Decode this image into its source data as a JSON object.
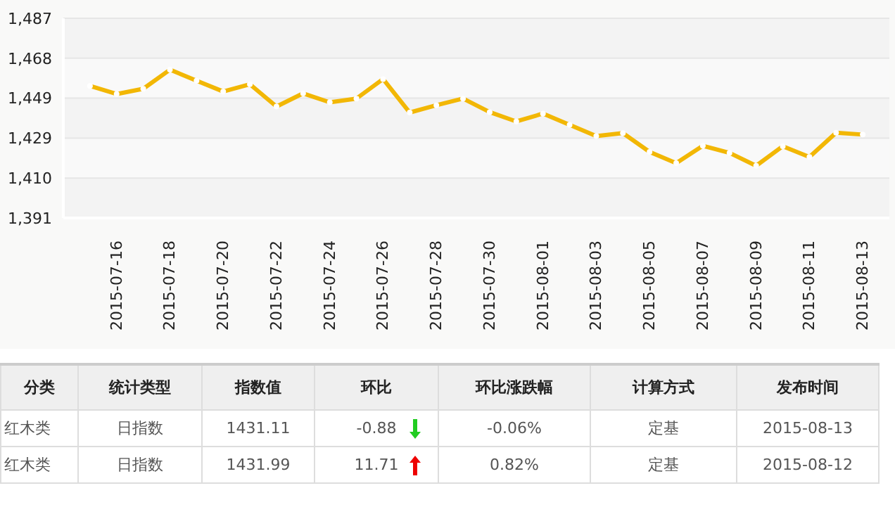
{
  "chart_data": {
    "type": "line",
    "x": [
      "2015-07-15",
      "2015-07-16",
      "2015-07-17",
      "2015-07-18",
      "2015-07-19",
      "2015-07-20",
      "2015-07-21",
      "2015-07-22",
      "2015-07-23",
      "2015-07-24",
      "2015-07-25",
      "2015-07-26",
      "2015-07-27",
      "2015-07-28",
      "2015-07-29",
      "2015-07-30",
      "2015-07-31",
      "2015-08-01",
      "2015-08-02",
      "2015-08-03",
      "2015-08-04",
      "2015-08-05",
      "2015-08-06",
      "2015-08-07",
      "2015-08-08",
      "2015-08-09",
      "2015-08-10",
      "2015-08-11",
      "2015-08-12",
      "2015-08-13"
    ],
    "series": [
      {
        "color": "#f2b705",
        "values": [
          1454.5,
          1450.6,
          1453.1,
          1462.3,
          1457.0,
          1451.8,
          1455.3,
          1444.6,
          1450.9,
          1446.6,
          1448.4,
          1457.8,
          1441.7,
          1445.2,
          1448.4,
          1441.9,
          1437.4,
          1441.2,
          1435.8,
          1430.4,
          1431.8,
          1422.8,
          1417.4,
          1425.7,
          1422.3,
          1416.1,
          1425.5,
          1420.3,
          1432.0,
          1431.1
        ]
      }
    ],
    "xlim": [
      "2015-07-14",
      "2015-08-14"
    ],
    "xticks": [
      "2015-07-16",
      "2015-07-18",
      "2015-07-20",
      "2015-07-22",
      "2015-07-24",
      "2015-07-26",
      "2015-07-28",
      "2015-07-30",
      "2015-08-01",
      "2015-08-03",
      "2015-08-05",
      "2015-08-07",
      "2015-08-09",
      "2015-08-11",
      "2015-08-13"
    ],
    "ylim": [
      1391,
      1487
    ],
    "yticks": [
      {
        "value": 1391,
        "label": "1,391"
      },
      {
        "value": 1410.2,
        "label": "1,410"
      },
      {
        "value": 1429.4,
        "label": "1,429"
      },
      {
        "value": 1448.6,
        "label": "1,449"
      },
      {
        "value": 1467.8,
        "label": "1,468"
      },
      {
        "value": 1487,
        "label": "1,487"
      }
    ],
    "grid": "y",
    "marker": "circle",
    "line_style": "solid",
    "annotations": [
      "分类",
      "统计类型",
      "指数值",
      "环比",
      "环比涨跌幅",
      "计算方式",
      "发布时间",
      "红木类",
      "日指数",
      "1431.11",
      "-0.88",
      "-0.06%",
      "定基",
      "2015-08-13",
      "红木类",
      "日指数",
      "1431.99",
      "11.71",
      "0.82%",
      "定基",
      "2015-08-12"
    ]
  }
}
